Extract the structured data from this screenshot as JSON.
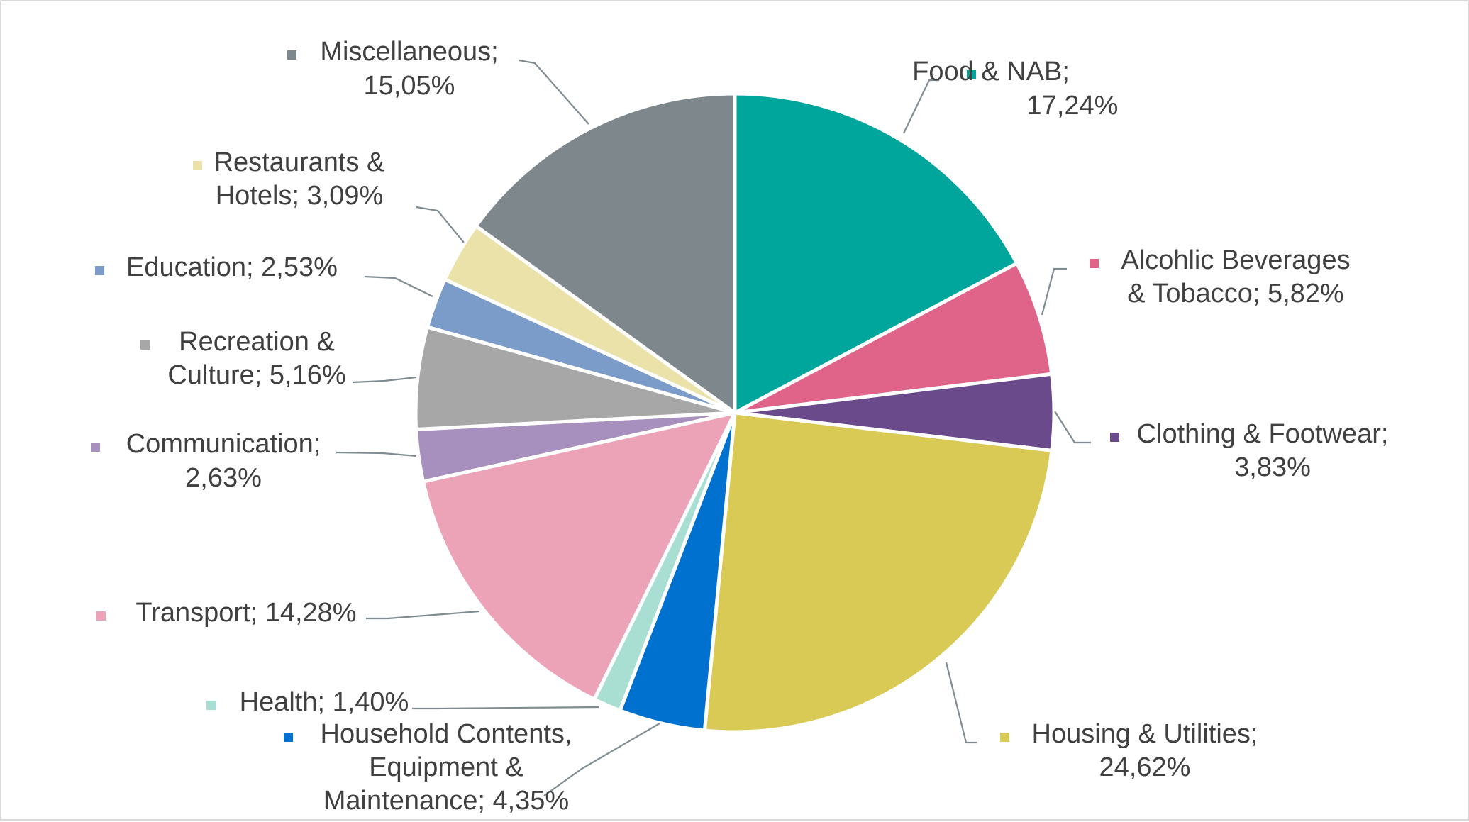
{
  "chart_data": {
    "type": "pie",
    "title": "",
    "labels": [
      "Food & NAB",
      "Alcohlic Beverages & Tobacco",
      "Clothing & Footwear",
      "Housing & Utilities",
      "Household Contents, Equipment & Maintenance",
      "Health",
      "Transport",
      "Communication",
      "Recreation & Culture",
      "Education",
      "Restaurants & Hotels",
      "Miscellaneous"
    ],
    "values": [
      17.24,
      5.82,
      3.83,
      24.62,
      4.35,
      1.4,
      14.28,
      2.63,
      5.16,
      2.53,
      3.09,
      15.05
    ],
    "value_labels": [
      "17,24%",
      "5,82%",
      "3,83%",
      "24,62%",
      "4,35%",
      "1,40%",
      "14,28%",
      "2,63%",
      "5,16%",
      "2,53%",
      "3,09%",
      "15,05%"
    ],
    "colors": [
      "#00a59b",
      "#e0648a",
      "#6a4a8b",
      "#d9c955",
      "#0071ce",
      "#a8dfd2",
      "#eca2b7",
      "#a790be",
      "#a7a7a7",
      "#7b9bc8",
      "#ebe2aa",
      "#7e878c"
    ],
    "start_angle_deg": 0,
    "direction": "clockwise",
    "data_label_lines": [
      [
        "Food & NAB;",
        "17,24%"
      ],
      [
        "Alcohlic Beverages",
        "& Tobacco; 5,82%"
      ],
      [
        "Clothing & Footwear;",
        "3,83%"
      ],
      [
        "Housing & Utilities;",
        "24,62%"
      ],
      [
        "Household Contents,",
        "Equipment &",
        "Maintenance; 4,35%"
      ],
      [
        "Health; 1,40%"
      ],
      [
        "Transport; 14,28%"
      ],
      [
        "Communication;",
        "2,63%"
      ],
      [
        "Recreation &",
        "Culture; 5,16%"
      ],
      [
        "Education; 2,53%"
      ],
      [
        "Restaurants &",
        "Hotels; 3,09%"
      ],
      [
        "Miscellaneous;",
        "15,05%"
      ]
    ],
    "legend": "none",
    "grid": false
  }
}
